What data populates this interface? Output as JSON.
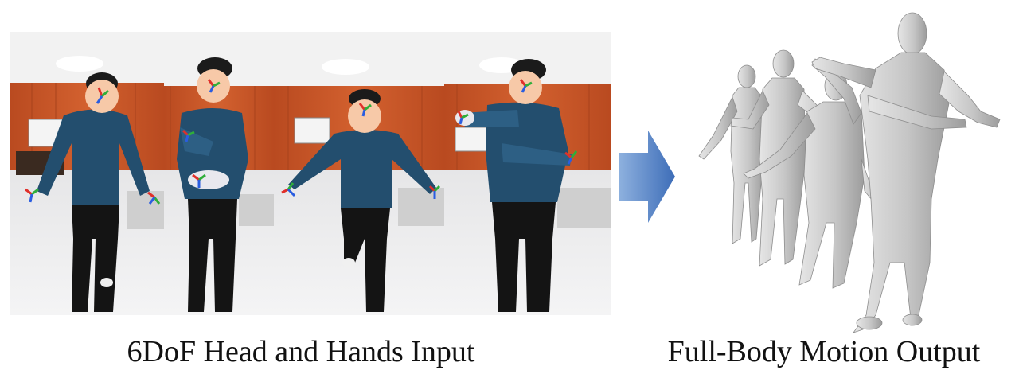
{
  "left_panel": {
    "caption": "6DoF Head and Hands Input",
    "frame_count": 4,
    "scene": {
      "wall_color": "#c8562a",
      "floor_color": "#e9e9ea",
      "ceiling_color": "#f2f2f2",
      "shirt_color": "#234e6e",
      "pants_color": "#141414",
      "face_marker_color": "#f7c9a8"
    },
    "axis_colors": {
      "x": "#e0302a",
      "y": "#2fae3a",
      "z": "#2a5de0"
    }
  },
  "arrow": {
    "icon": "right-arrow-icon",
    "color": "#4a78c0"
  },
  "right_panel": {
    "caption": "Full-Body Motion Output",
    "mesh_color": "#c9c9c9",
    "pose_count": 4
  }
}
